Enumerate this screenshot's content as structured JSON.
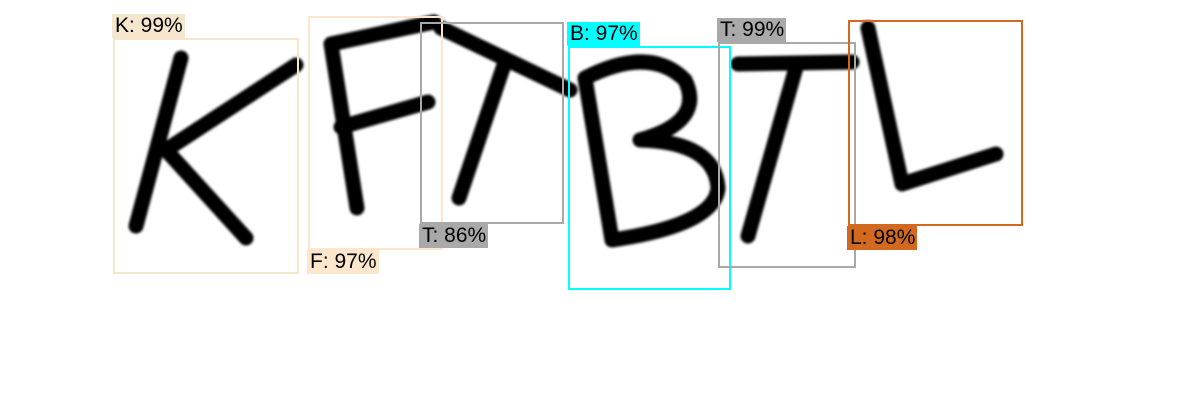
{
  "detections": [
    {
      "label": "K: 99%",
      "color": "#f5e6cd",
      "text_color": "#000000"
    },
    {
      "label": "F: 97%",
      "color": "#fde7cc",
      "text_color": "#000000"
    },
    {
      "label": "T: 86%",
      "color": "#a9a9a9",
      "text_color": "#000000"
    },
    {
      "label": "B: 97%",
      "color": "#00ffff",
      "text_color": "#000000"
    },
    {
      "label": "T: 99%",
      "color": "#a9a9a9",
      "text_color": "#000000"
    },
    {
      "label": "L: 98%",
      "color": "#d2691e",
      "text_color": "#000000"
    }
  ]
}
